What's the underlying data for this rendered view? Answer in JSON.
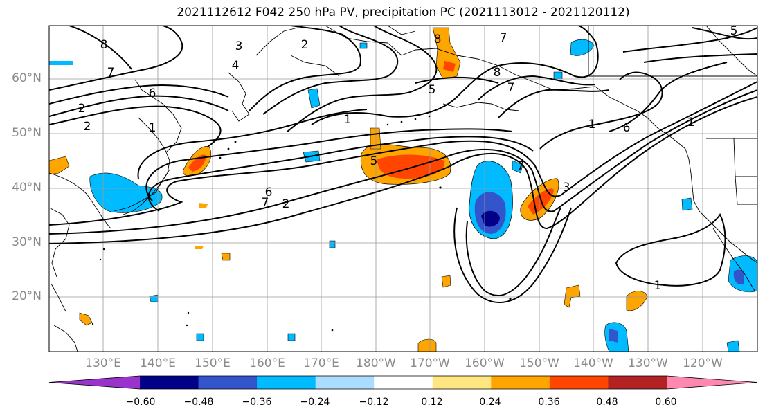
{
  "title": "2021112612 F042 250 hPa PV, precipitation PC (2021113012 - 2021120112)",
  "lat_labels": [
    "60°N",
    "50°N",
    "40°N",
    "30°N",
    "20°N"
  ],
  "lon_labels": [
    "130°E",
    "140°E",
    "150°E",
    "160°E",
    "170°E",
    "180°W",
    "170°W",
    "160°W",
    "150°W",
    "140°W",
    "130°W",
    "120°W"
  ],
  "colorbar": {
    "tick_labels": [
      "−0.60",
      "−0.48",
      "−0.36",
      "−0.24",
      "−0.12",
      "0.12",
      "0.24",
      "0.36",
      "0.48",
      "0.60"
    ],
    "colors": [
      "#9933cc",
      "#000088",
      "#3355cc",
      "#00bbff",
      "#aaddff",
      "#ffffff",
      "#ffe680",
      "#ffa500",
      "#ff4500",
      "#b22222",
      "#ff88b0"
    ]
  },
  "contour_labels": [
    "8",
    "3",
    "2",
    "4",
    "7",
    "6",
    "2",
    "1",
    "2",
    "1",
    "5",
    "8",
    "7",
    "5",
    "7",
    "1",
    "7",
    "6",
    "1",
    "6",
    "2",
    "7",
    "3",
    "1",
    "8",
    "5"
  ]
}
